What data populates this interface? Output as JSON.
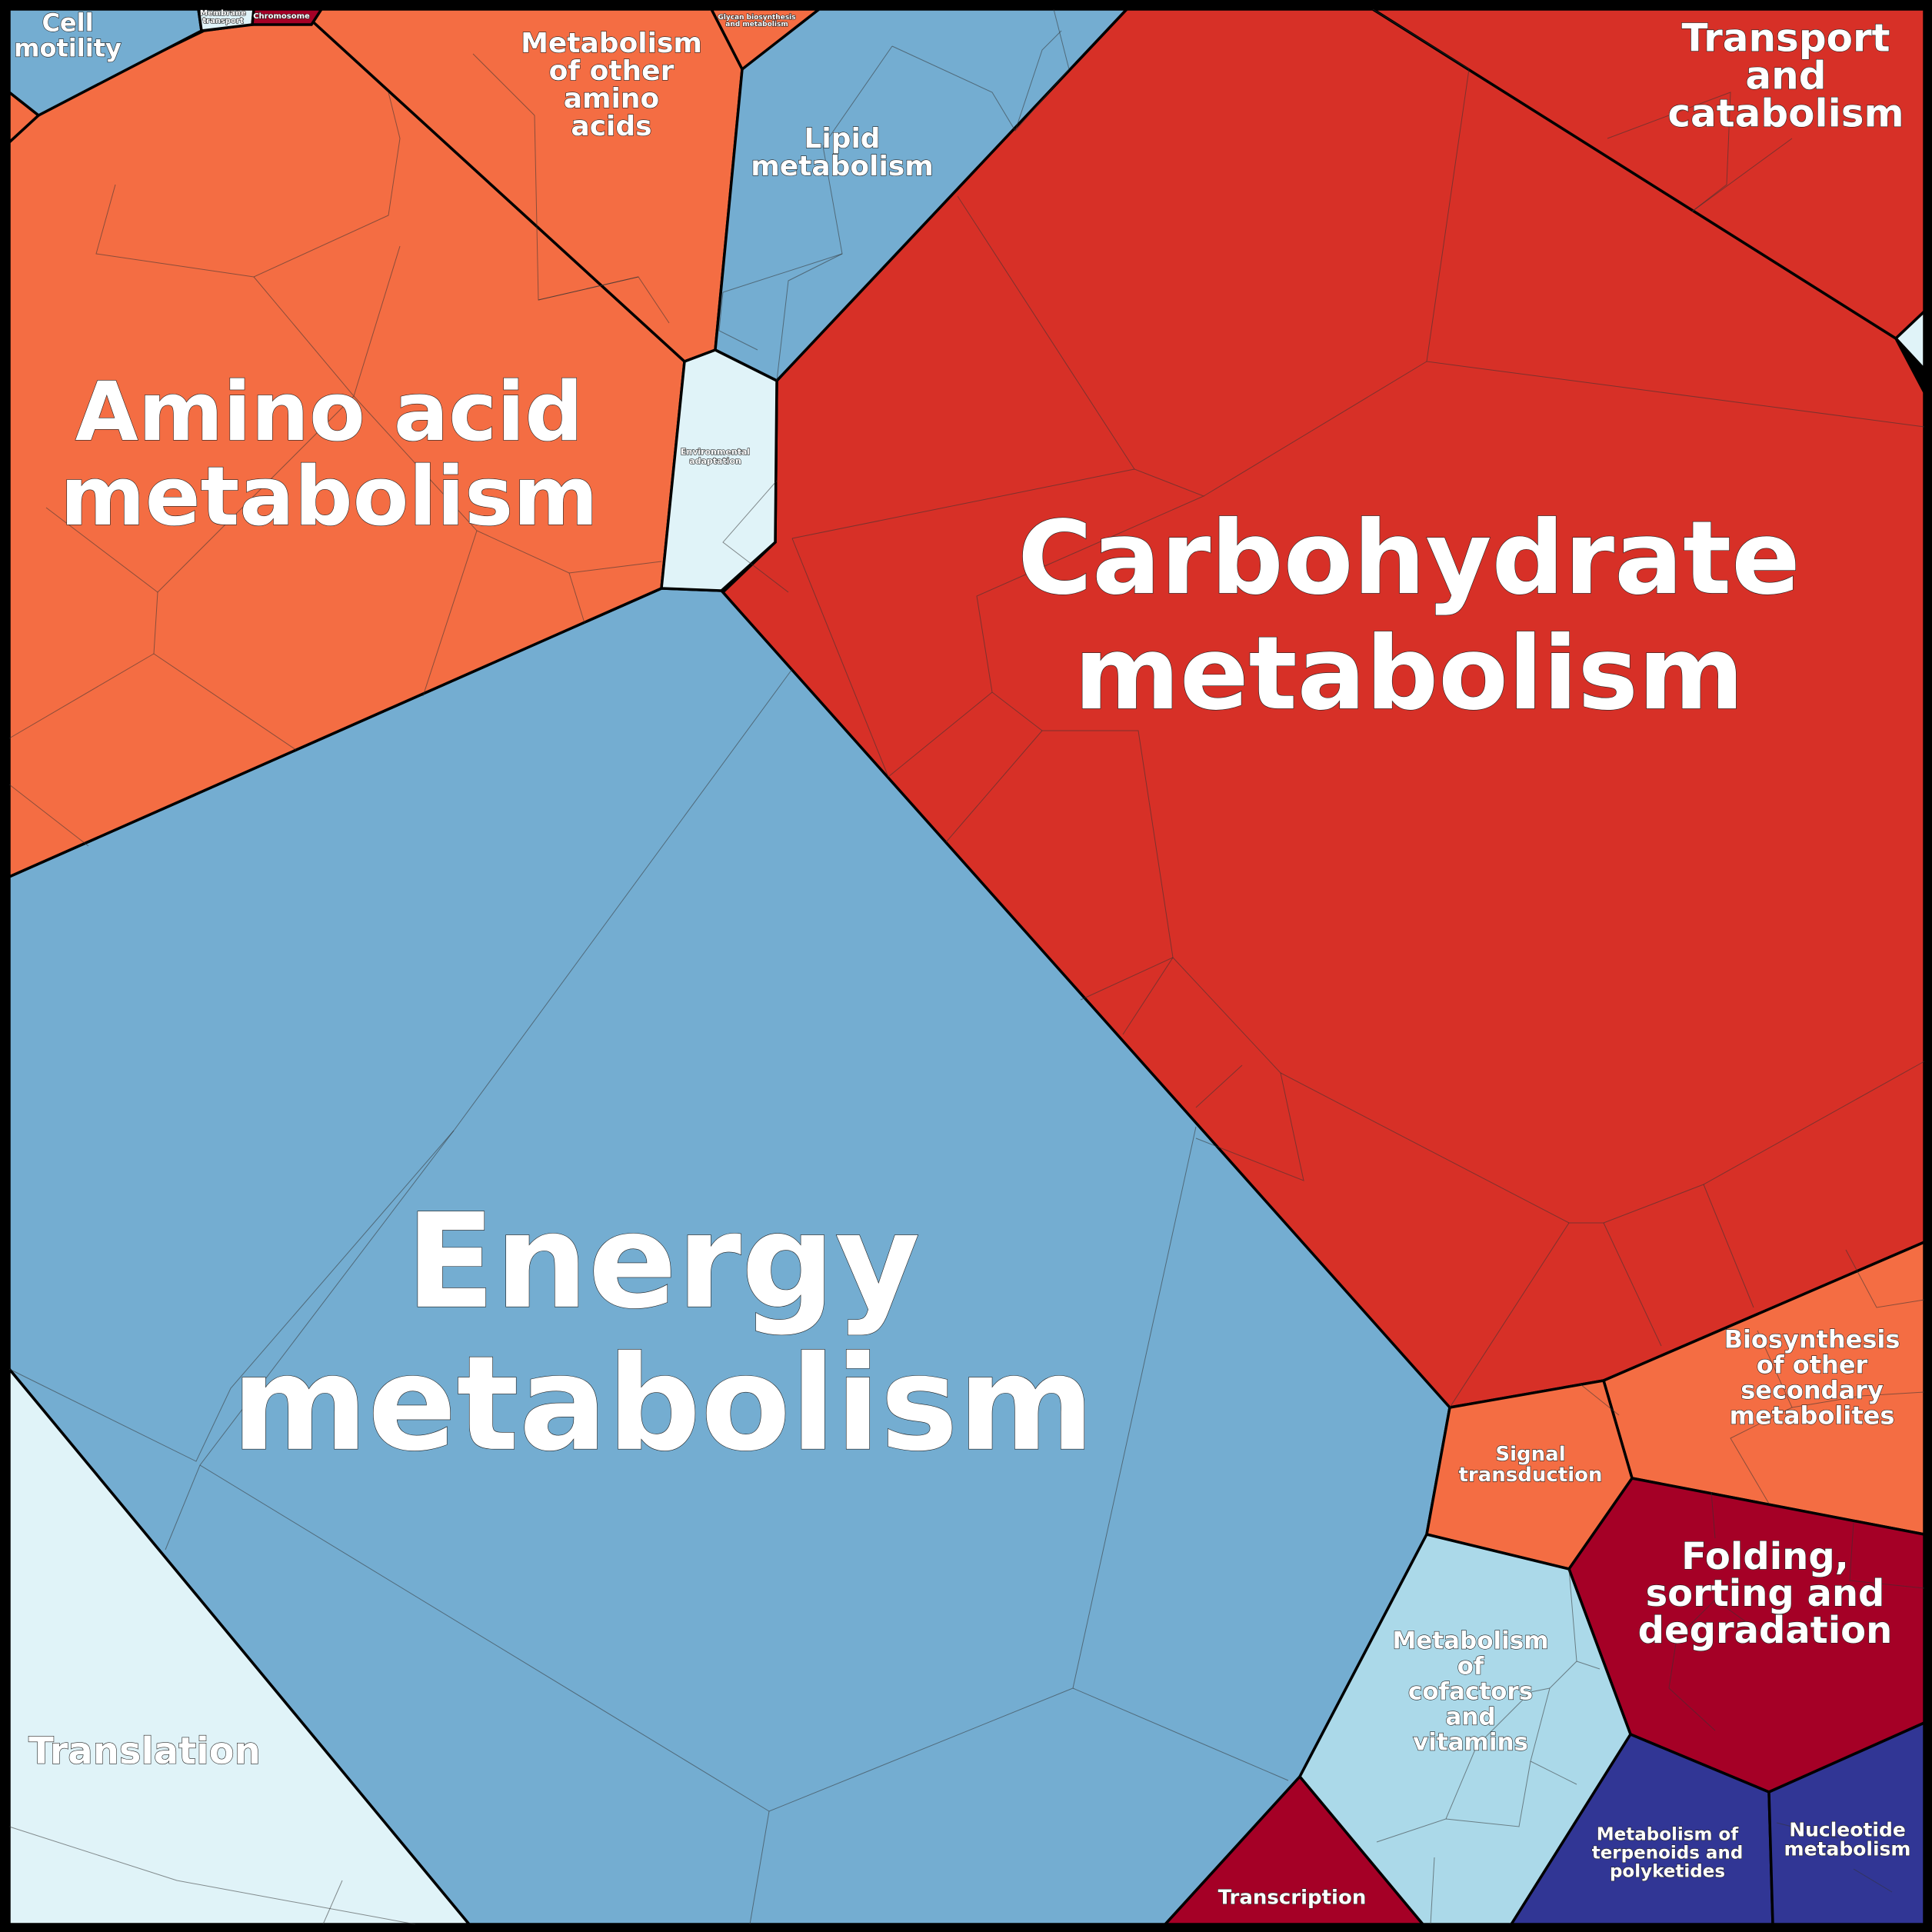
{
  "colors": {
    "frame": "#000000",
    "red": "#d73027",
    "orange": "#f46d43",
    "blue": "#74add1",
    "light_blue": "#abd9e9",
    "pale_blue": "#e0f3f8",
    "dark_red": "#a50026",
    "navy": "#313695"
  },
  "cells": {
    "carbohydrate": {
      "lines": [
        "Carbohydrate",
        "metabolism"
      ],
      "color": "red"
    },
    "energy": {
      "lines": [
        "Energy",
        "metabolism"
      ],
      "color": "blue"
    },
    "amino": {
      "lines": [
        "Amino acid",
        "metabolism"
      ],
      "color": "orange"
    },
    "other_amino": {
      "lines": [
        "Metabolism",
        "of other",
        "amino",
        "acids"
      ],
      "color": "orange"
    },
    "lipid": {
      "lines": [
        "Lipid",
        "metabolism"
      ],
      "color": "blue"
    },
    "transport": {
      "lines": [
        "Transport",
        "and",
        "catabolism"
      ],
      "color": "red"
    },
    "cell_motility": {
      "lines": [
        "Cell",
        "motility"
      ],
      "color": "blue"
    },
    "membrane": {
      "lines": [
        "Membrane",
        "transport"
      ],
      "color": "pale_blue"
    },
    "chromosome": {
      "lines": [
        "Chromosome"
      ],
      "color": "dark_red"
    },
    "glycan": {
      "lines": [
        "Glycan biosynthesis",
        "and metabolism"
      ],
      "color": "orange"
    },
    "environmental": {
      "lines": [
        "Environmental",
        "adaptation"
      ],
      "color": "pale_blue"
    },
    "translation": {
      "lines": [
        "Translation"
      ],
      "color": "pale_blue"
    },
    "biosynthesis": {
      "lines": [
        "Biosynthesis",
        "of other",
        "secondary",
        "metabolites"
      ],
      "color": "orange"
    },
    "signal": {
      "lines": [
        "Signal",
        "transduction"
      ],
      "color": "orange"
    },
    "folding": {
      "lines": [
        "Folding,",
        "sorting and",
        "degradation"
      ],
      "color": "dark_red"
    },
    "cofactors": {
      "lines": [
        "Metabolism",
        "of",
        "cofactors",
        "and",
        "vitamins"
      ],
      "color": "light_blue"
    },
    "transcription": {
      "lines": [
        "Transcription"
      ],
      "color": "dark_red"
    },
    "terpenoids": {
      "lines": [
        "Metabolism of",
        "terpenoids and",
        "polyketides"
      ],
      "color": "navy"
    },
    "nucleotide": {
      "lines": [
        "Nucleotide",
        "metabolism"
      ],
      "color": "navy"
    },
    "small_right": {
      "lines": [],
      "color": "pale_blue"
    },
    "small_left": {
      "lines": [],
      "color": "orange"
    }
  }
}
